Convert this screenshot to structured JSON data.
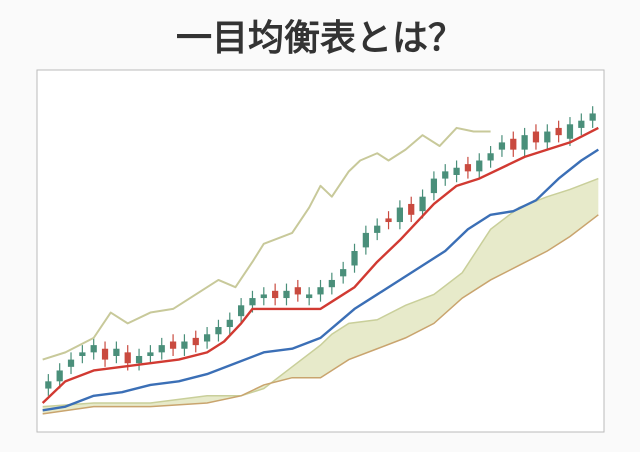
{
  "chart_data": {
    "type": "ichimoku",
    "title": "一目均衡表とは？",
    "xlim": [
      0,
      100
    ],
    "ylim": [
      0,
      100
    ],
    "up_color": "#4a8f7a",
    "down_color": "#c94a3f",
    "candles": {
      "x": [
        2,
        4,
        6,
        8,
        10,
        12,
        14,
        16,
        18,
        20,
        22,
        24,
        26,
        28,
        30,
        32,
        34,
        36,
        38,
        40,
        42,
        44,
        46,
        48,
        50,
        52,
        54,
        56,
        58,
        60,
        62,
        64,
        66,
        68,
        70,
        72,
        74,
        76,
        78,
        80,
        82,
        84,
        86,
        88,
        90,
        92,
        94,
        96,
        98
      ],
      "open": [
        12,
        14,
        18,
        21,
        22,
        23,
        21,
        22,
        19,
        21,
        22,
        25,
        23,
        26,
        25,
        27,
        29,
        32,
        35,
        37,
        39,
        37,
        40,
        37,
        38,
        40,
        43,
        46,
        51,
        55,
        59,
        58,
        63,
        61,
        66,
        70,
        71,
        74,
        72,
        75,
        78,
        81,
        78,
        83,
        80,
        84,
        81,
        84,
        86
      ],
      "high": [
        16,
        19,
        22,
        24,
        26,
        25,
        25,
        24,
        23,
        24,
        26,
        27,
        27,
        28,
        29,
        31,
        33,
        37,
        39,
        40,
        41,
        41,
        42,
        40,
        42,
        44,
        47,
        52,
        57,
        59,
        61,
        64,
        65,
        67,
        72,
        74,
        75,
        76,
        77,
        79,
        82,
        83,
        84,
        85,
        85,
        86,
        87,
        88,
        90
      ],
      "low": [
        10,
        12,
        16,
        19,
        20,
        18,
        19,
        17,
        17,
        19,
        20,
        21,
        21,
        22,
        23,
        25,
        27,
        30,
        33,
        35,
        35,
        35,
        36,
        35,
        36,
        38,
        41,
        44,
        49,
        53,
        56,
        56,
        58,
        59,
        64,
        68,
        69,
        70,
        70,
        73,
        76,
        76,
        76,
        78,
        78,
        80,
        79,
        82,
        84
      ],
      "close": [
        14,
        17,
        20,
        22,
        24,
        20,
        23,
        19,
        21,
        22,
        24,
        23,
        25,
        24,
        27,
        29,
        31,
        35,
        37,
        38,
        37,
        39,
        38,
        38,
        40,
        42,
        45,
        50,
        55,
        57,
        58,
        62,
        60,
        65,
        70,
        72,
        73,
        72,
        75,
        77,
        80,
        78,
        82,
        80,
        83,
        82,
        85,
        86,
        88
      ]
    },
    "cloud": {
      "fill": "#dfe3b8",
      "span_a_color": "#c9cf9a",
      "span_b_color": "#c9a46e",
      "x": [
        1,
        10,
        20,
        30,
        36,
        40,
        45,
        50,
        52,
        55,
        60,
        65,
        70,
        75,
        80,
        85,
        90,
        94,
        99
      ],
      "span_a": [
        7,
        8,
        8,
        10,
        10,
        12,
        18,
        24,
        27,
        30,
        31,
        35,
        38,
        44,
        56,
        62,
        65,
        67,
        70
      ],
      "span_b": [
        5,
        7,
        7,
        8,
        10,
        13,
        15,
        15,
        17,
        20,
        23,
        26,
        30,
        37,
        42,
        46,
        50,
        54,
        60
      ]
    },
    "series": [
      {
        "color": "#c8c99a",
        "x": [
          1,
          5,
          10,
          13,
          16,
          20,
          24,
          28,
          32,
          35,
          38,
          40,
          45,
          48,
          50,
          52,
          55,
          57,
          60,
          62,
          65,
          68,
          71,
          74,
          77,
          80
        ],
        "values": [
          20,
          22,
          26,
          33,
          30,
          33,
          34,
          38,
          42,
          40,
          47,
          52,
          55,
          62,
          68,
          65,
          72,
          75,
          77,
          75,
          78,
          82,
          79,
          84,
          83,
          83
        ]
      },
      {
        "color": "#3b6fb6",
        "x": [
          1,
          5,
          10,
          15,
          20,
          25,
          30,
          35,
          40,
          45,
          50,
          53,
          56,
          60,
          64,
          68,
          72,
          76,
          80,
          84,
          88,
          92,
          96,
          99
        ],
        "values": [
          6,
          7,
          10,
          11,
          13,
          14,
          16,
          19,
          22,
          23,
          26,
          30,
          34,
          38,
          42,
          46,
          50,
          56,
          60,
          61,
          64,
          70,
          75,
          78
        ]
      },
      {
        "color": "#d13a32",
        "x": [
          1,
          5,
          10,
          15,
          20,
          25,
          30,
          33,
          36,
          38,
          42,
          46,
          50,
          53,
          56,
          60,
          64,
          67,
          70,
          74,
          78,
          82,
          86,
          90,
          94,
          99
        ],
        "values": [
          8,
          14,
          17,
          18,
          19,
          20,
          22,
          25,
          30,
          34,
          34,
          34,
          34,
          37,
          40,
          47,
          53,
          58,
          63,
          68,
          70,
          73,
          76,
          78,
          80,
          84
        ]
      }
    ]
  }
}
